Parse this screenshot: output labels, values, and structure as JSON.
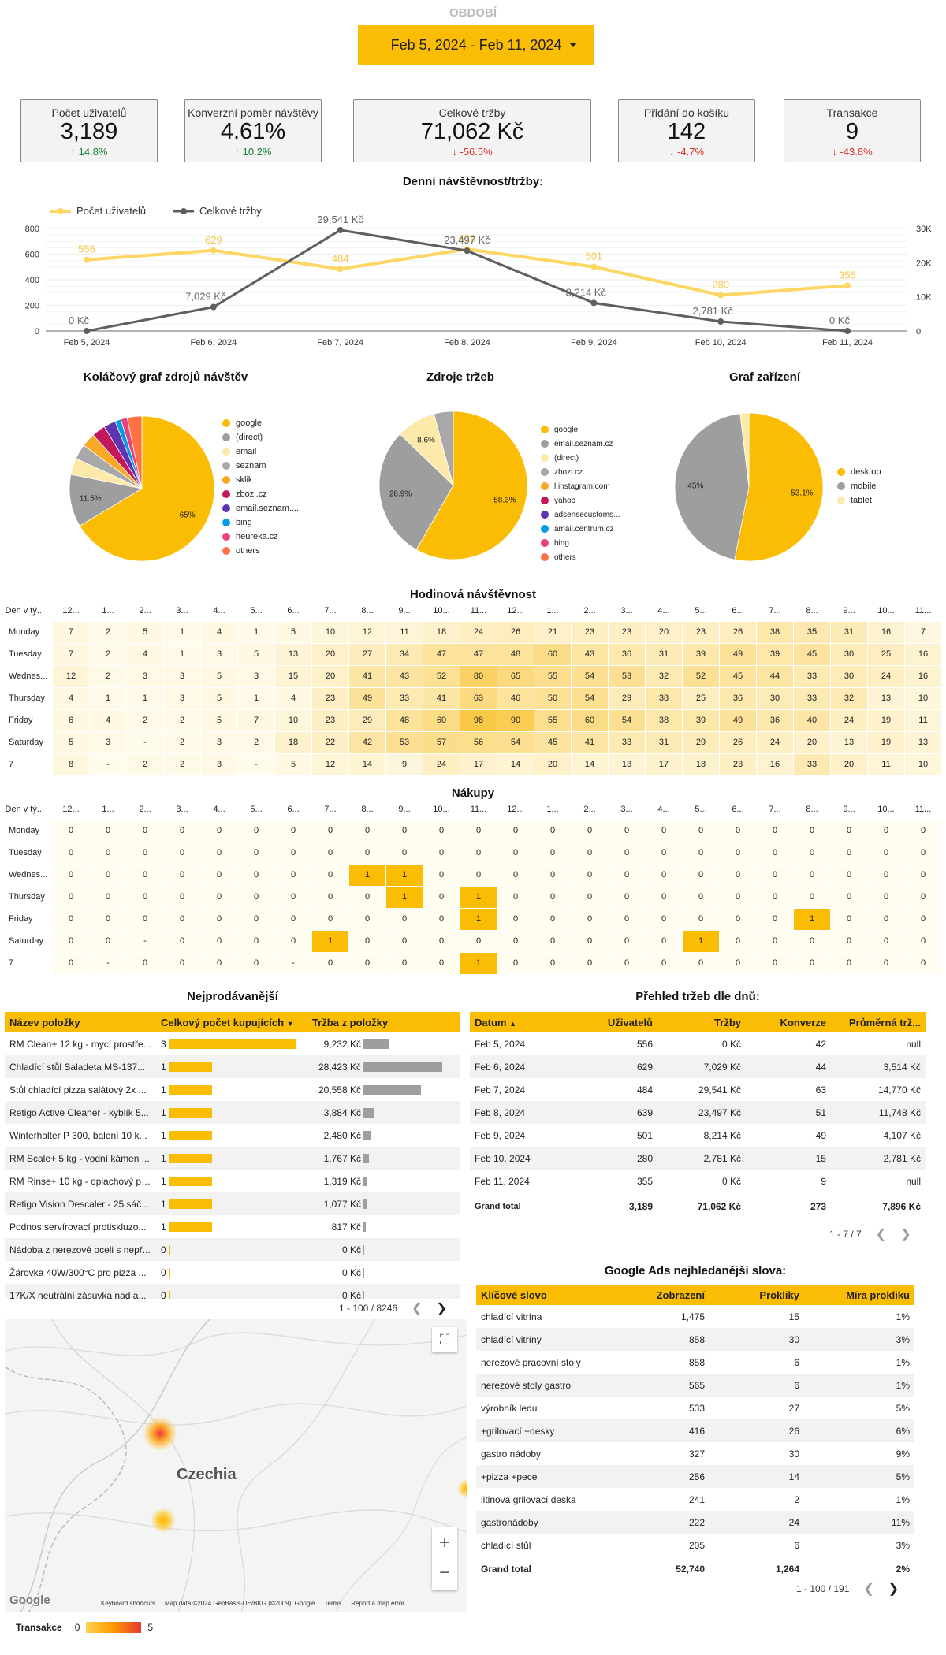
{
  "period": {
    "label": "OBDOBÍ",
    "range": "Feb 5, 2024 - Feb 11, 2024"
  },
  "kpis": [
    {
      "title": "Počet uživatelů",
      "value": "3,189",
      "delta": "14.8%",
      "dir": "up"
    },
    {
      "title": "Konverzní poměr návštěvy",
      "value": "4.61%",
      "delta": "10.2%",
      "dir": "up"
    },
    {
      "title": "Celkové tržby",
      "value": "71,062 Kč",
      "delta": "-56.5%",
      "dir": "down"
    },
    {
      "title": "Přidání do košíku",
      "value": "142",
      "delta": "-4.7%",
      "dir": "down"
    },
    {
      "title": "Transakce",
      "value": "9",
      "delta": "-43.8%",
      "dir": "down"
    }
  ],
  "colors": {
    "yellow": "#fbbc04",
    "gray": "#5f5f5f",
    "up": "#188038",
    "down": "#d93025"
  },
  "line_chart": {
    "title": "Denní návštěvnost/tržby:",
    "chart_data": {
      "type": "line",
      "categories": [
        "Feb 5, 2024",
        "Feb 6, 2024",
        "Feb 7, 2024",
        "Feb 8, 2024",
        "Feb 9, 2024",
        "Feb 10, 2024",
        "Feb 11, 2024"
      ],
      "series": [
        {
          "name": "Počet uživatelů",
          "axis": "left",
          "values": [
            556,
            629,
            484,
            639,
            501,
            280,
            355
          ],
          "labels": [
            "556",
            "629",
            "484",
            "639",
            "501",
            "280",
            "355"
          ],
          "color": "#fdd663"
        },
        {
          "name": "Celkové tržby",
          "axis": "right",
          "values": [
            0,
            7029,
            29541,
            23497,
            8214,
            2781,
            0
          ],
          "labels": [
            "0 Kč",
            "7,029 Kč",
            "29,541 Kč",
            "23,497 Kč",
            "8,214 Kč",
            "2,781 Kč",
            "0 Kč"
          ],
          "color": "#5f5f5f"
        }
      ],
      "left_ticks": [
        "0",
        "200",
        "400",
        "600",
        "800"
      ],
      "left_range": [
        0,
        800
      ],
      "right_ticks": [
        "0",
        "10K",
        "20K",
        "30K"
      ],
      "right_range": [
        0,
        30000
      ],
      "legend": "top-left"
    }
  },
  "pie_sources": {
    "title": "Koláčový graf zdrojů návštěv",
    "chart_data": {
      "type": "pie",
      "labels": [
        "google",
        "(direct)",
        "email",
        "seznam",
        "sklik",
        "zbozi.cz",
        "email.seznam....",
        "bing",
        "heureka.cz",
        "others"
      ],
      "values": [
        65,
        11.5,
        3.6,
        3.3,
        3.0,
        3.0,
        2.6,
        1.3,
        1.4,
        3.2
      ],
      "colors": [
        "#fbbc04",
        "#9e9e9e",
        "#fde9a9",
        "#a8a8a8",
        "#f9a825",
        "#c2185b",
        "#5e35b1",
        "#039be5",
        "#ec407a",
        "#ff7043"
      ],
      "shown_labels": {
        "0": "65%",
        "1": "11.5%"
      }
    }
  },
  "pie_revenue": {
    "title": "Zdroje tržeb",
    "chart_data": {
      "type": "pie",
      "labels": [
        "google",
        "email.seznam.cz",
        "(direct)",
        "zbozi.cz",
        "l.instagram.com",
        "yahoo",
        "adsensecustoms...",
        "amail.centrum.cz",
        "bing",
        "others"
      ],
      "values": [
        58.3,
        28.9,
        8.6,
        4.2,
        0,
        0,
        0,
        0,
        0,
        0
      ],
      "colors": [
        "#fbbc04",
        "#9e9e9e",
        "#fde9a9",
        "#a8a8a8",
        "#f9a825",
        "#c2185b",
        "#5e35b1",
        "#039be5",
        "#ec407a",
        "#ff7043"
      ],
      "shown_labels": {
        "0": "58.3%",
        "1": "28.9%",
        "2": "8.6%"
      }
    }
  },
  "pie_devices": {
    "title": "Graf zařízení",
    "chart_data": {
      "type": "pie",
      "labels": [
        "desktop",
        "mobile",
        "tablet"
      ],
      "values": [
        53.1,
        45,
        1.9
      ],
      "colors": [
        "#fbbc04",
        "#9e9e9e",
        "#fde9a9"
      ],
      "shown_labels": {
        "0": "53.1%",
        "1": "45%"
      }
    }
  },
  "heat_visits": {
    "title": "Hodinová návštěvnost",
    "corner": "Den v tý...",
    "cols": [
      "12...",
      "1...",
      "2...",
      "3...",
      "4...",
      "5...",
      "6...",
      "7...",
      "8...",
      "9...",
      "10...",
      "11...",
      "12...",
      "1...",
      "2...",
      "3...",
      "4...",
      "5...",
      "6...",
      "7...",
      "8...",
      "9...",
      "10...",
      "11..."
    ],
    "rows": [
      {
        "label": "Monday",
        "values": [
          "7",
          "2",
          "5",
          "1",
          "4",
          "1",
          "5",
          "10",
          "12",
          "11",
          "18",
          "24",
          "26",
          "21",
          "23",
          "23",
          "20",
          "23",
          "26",
          "38",
          "35",
          "31",
          "16",
          "7"
        ]
      },
      {
        "label": "Tuesday",
        "values": [
          "7",
          "2",
          "4",
          "1",
          "3",
          "5",
          "13",
          "20",
          "27",
          "34",
          "47",
          "47",
          "48",
          "60",
          "43",
          "36",
          "31",
          "39",
          "49",
          "39",
          "45",
          "30",
          "25",
          "16"
        ]
      },
      {
        "label": "Wednes...",
        "values": [
          "12",
          "2",
          "3",
          "3",
          "5",
          "3",
          "15",
          "20",
          "41",
          "43",
          "52",
          "80",
          "65",
          "55",
          "54",
          "53",
          "32",
          "52",
          "45",
          "44",
          "33",
          "30",
          "24",
          "16"
        ]
      },
      {
        "label": "Thursday",
        "values": [
          "4",
          "1",
          "1",
          "3",
          "5",
          "1",
          "4",
          "23",
          "49",
          "33",
          "41",
          "63",
          "46",
          "50",
          "54",
          "29",
          "38",
          "25",
          "36",
          "30",
          "33",
          "32",
          "13",
          "10"
        ]
      },
      {
        "label": "Friday",
        "values": [
          "6",
          "4",
          "2",
          "2",
          "5",
          "7",
          "10",
          "23",
          "29",
          "48",
          "60",
          "98",
          "90",
          "55",
          "60",
          "54",
          "38",
          "39",
          "49",
          "36",
          "40",
          "24",
          "19",
          "11"
        ]
      },
      {
        "label": "Saturday",
        "values": [
          "5",
          "3",
          "-",
          "2",
          "3",
          "2",
          "18",
          "22",
          "42",
          "53",
          "57",
          "56",
          "54",
          "45",
          "41",
          "33",
          "31",
          "29",
          "26",
          "24",
          "20",
          "13",
          "19",
          "13"
        ]
      },
      {
        "label": "7",
        "values": [
          "8",
          "-",
          "2",
          "2",
          "3",
          "-",
          "5",
          "12",
          "14",
          "9",
          "24",
          "17",
          "14",
          "20",
          "14",
          "13",
          "17",
          "18",
          "23",
          "16",
          "33",
          "20",
          "11",
          "10"
        ]
      }
    ]
  },
  "heat_purchases": {
    "title": "Nákupy",
    "corner": "Den v tý...",
    "cols": [
      "12...",
      "1...",
      "2...",
      "3...",
      "4...",
      "5...",
      "6...",
      "7...",
      "8...",
      "9...",
      "10...",
      "11...",
      "12...",
      "1...",
      "2...",
      "3...",
      "4...",
      "5...",
      "6...",
      "7...",
      "8...",
      "9...",
      "10...",
      "11..."
    ],
    "rows": [
      {
        "label": "Monday",
        "values": [
          "0",
          "0",
          "0",
          "0",
          "0",
          "0",
          "0",
          "0",
          "0",
          "0",
          "0",
          "0",
          "0",
          "0",
          "0",
          "0",
          "0",
          "0",
          "0",
          "0",
          "0",
          "0",
          "0",
          "0"
        ]
      },
      {
        "label": "Tuesday",
        "values": [
          "0",
          "0",
          "0",
          "0",
          "0",
          "0",
          "0",
          "0",
          "0",
          "0",
          "0",
          "0",
          "0",
          "0",
          "0",
          "0",
          "0",
          "0",
          "0",
          "0",
          "0",
          "0",
          "0",
          "0"
        ]
      },
      {
        "label": "Wednes...",
        "values": [
          "0",
          "0",
          "0",
          "0",
          "0",
          "0",
          "0",
          "0",
          "1",
          "1",
          "0",
          "0",
          "0",
          "0",
          "0",
          "0",
          "0",
          "0",
          "0",
          "0",
          "0",
          "0",
          "0",
          "0"
        ]
      },
      {
        "label": "Thursday",
        "values": [
          "0",
          "0",
          "0",
          "0",
          "0",
          "0",
          "0",
          "0",
          "0",
          "1",
          "0",
          "1",
          "0",
          "0",
          "0",
          "0",
          "0",
          "0",
          "0",
          "0",
          "0",
          "0",
          "0",
          "0"
        ]
      },
      {
        "label": "Friday",
        "values": [
          "0",
          "0",
          "0",
          "0",
          "0",
          "0",
          "0",
          "0",
          "0",
          "0",
          "0",
          "1",
          "0",
          "0",
          "0",
          "0",
          "0",
          "0",
          "0",
          "0",
          "1",
          "0",
          "0",
          "0"
        ]
      },
      {
        "label": "Saturday",
        "values": [
          "0",
          "0",
          "-",
          "0",
          "0",
          "0",
          "0",
          "1",
          "0",
          "0",
          "0",
          "0",
          "0",
          "0",
          "0",
          "0",
          "0",
          "1",
          "0",
          "0",
          "0",
          "0",
          "0",
          "0"
        ]
      },
      {
        "label": "7",
        "values": [
          "0",
          "-",
          "0",
          "0",
          "0",
          "0",
          "-",
          "0",
          "0",
          "0",
          "0",
          "1",
          "0",
          "0",
          "0",
          "0",
          "0",
          "0",
          "0",
          "0",
          "0",
          "0",
          "0",
          "0"
        ]
      }
    ]
  },
  "bestsellers": {
    "title": "Nejprodávanější",
    "headers": [
      "Název položky",
      "Celkový počet kupujících",
      "Tržba z položky"
    ],
    "rows": [
      {
        "name": "RM Clean+ 12 kg - mycí prostře...",
        "buyers": "3",
        "b": 3,
        "rev": "9,232 Kč",
        "r": 9232
      },
      {
        "name": "Chladící stůl Saladeta MS-137...",
        "buyers": "1",
        "b": 1,
        "rev": "28,423 Kč",
        "r": 28423
      },
      {
        "name": "Stůl chladící pizza salátový 2x ...",
        "buyers": "1",
        "b": 1,
        "rev": "20,558 Kč",
        "r": 20558
      },
      {
        "name": "Retigo Active Cleaner - kyblík 5...",
        "buyers": "1",
        "b": 1,
        "rev": "3,884 Kč",
        "r": 3884
      },
      {
        "name": "Winterhalter P 300, balení 10 k...",
        "buyers": "1",
        "b": 1,
        "rev": "2,480 Kč",
        "r": 2480
      },
      {
        "name": "RM Scale+ 5 kg - vodní kámen ...",
        "buyers": "1",
        "b": 1,
        "rev": "1,767 Kč",
        "r": 1767
      },
      {
        "name": "RM Rinse+ 10 kg - oplachový pr...",
        "buyers": "1",
        "b": 1,
        "rev": "1,319 Kč",
        "r": 1319
      },
      {
        "name": "Retigo Vision Descaler - 25 sáč...",
        "buyers": "1",
        "b": 1,
        "rev": "1,077 Kč",
        "r": 1077
      },
      {
        "name": "Podnos servírovací protiskluzo...",
        "buyers": "1",
        "b": 1,
        "rev": "817 Kč",
        "r": 817
      },
      {
        "name": "Nádoba z nerezové oceli s nepř...",
        "buyers": "0",
        "b": 0,
        "rev": "0 Kč",
        "r": 0
      },
      {
        "name": "Žárovka 40W/300°C pro pizza ...",
        "buyers": "0",
        "b": 0,
        "rev": "0 Kč",
        "r": 0
      },
      {
        "name": "17K/X neutrální zásuvka nad a...",
        "buyers": "0",
        "b": 0,
        "rev": "0 Kč",
        "r": 0
      }
    ],
    "pager": "1 - 100 / 8246"
  },
  "daily_revenue": {
    "title": "Přehled tržeb dle dnů:",
    "headers": [
      "Datum",
      "Uživatelů",
      "Tržby",
      "Konverze",
      "Průměrná trž..."
    ],
    "rows": [
      [
        "Feb 5, 2024",
        "556",
        "0 Kč",
        "42",
        "null"
      ],
      [
        "Feb 6, 2024",
        "629",
        "7,029 Kč",
        "44",
        "3,514 Kč"
      ],
      [
        "Feb 7, 2024",
        "484",
        "29,541 Kč",
        "63",
        "14,770 Kč"
      ],
      [
        "Feb 8, 2024",
        "639",
        "23,497 Kč",
        "51",
        "11,748 Kč"
      ],
      [
        "Feb 9, 2024",
        "501",
        "8,214 Kč",
        "49",
        "4,107 Kč"
      ],
      [
        "Feb 10, 2024",
        "280",
        "2,781 Kč",
        "15",
        "2,781 Kč"
      ],
      [
        "Feb 11, 2024",
        "355",
        "0 Kč",
        "9",
        "null"
      ]
    ],
    "total": [
      "Grand total",
      "3,189",
      "71,062 Kč",
      "273",
      "7,896 Kč"
    ],
    "pager": "1 - 7 / 7"
  },
  "ads": {
    "title": "Google Ads nejhledanější slova:",
    "headers": [
      "Klíčové slovo",
      "Zobrazení",
      "Prokliky",
      "Míra prokliku"
    ],
    "rows": [
      [
        "chladící vitrína",
        "1,475",
        "15",
        "1%"
      ],
      [
        "chladící vitríny",
        "858",
        "30",
        "3%"
      ],
      [
        "nerezové pracovní stoly",
        "858",
        "6",
        "1%"
      ],
      [
        "nerezové stoly gastro",
        "565",
        "6",
        "1%"
      ],
      [
        "výrobník ledu",
        "533",
        "27",
        "5%"
      ],
      [
        "+grilovací +desky",
        "416",
        "26",
        "6%"
      ],
      [
        "gastro nádoby",
        "327",
        "30",
        "9%"
      ],
      [
        "+pizza +pece",
        "256",
        "14",
        "5%"
      ],
      [
        "litinová grilovací deska",
        "241",
        "2",
        "1%"
      ],
      [
        "gastronádoby",
        "222",
        "24",
        "11%"
      ],
      [
        "chladící stůl",
        "205",
        "6",
        "3%"
      ]
    ],
    "total": [
      "Grand total",
      "52,740",
      "1,264",
      "2%"
    ],
    "pager": "1 - 100 / 191"
  },
  "map": {
    "country": "Czechia",
    "footer": [
      "Keyboard shortcuts",
      "Map data ©2024 GeoBasis-DE/BKG (©2009), Google",
      "Terms",
      "Report a map error"
    ],
    "logo": "Google",
    "legend": {
      "label": "Transakce",
      "min": "0",
      "max": "5"
    }
  }
}
